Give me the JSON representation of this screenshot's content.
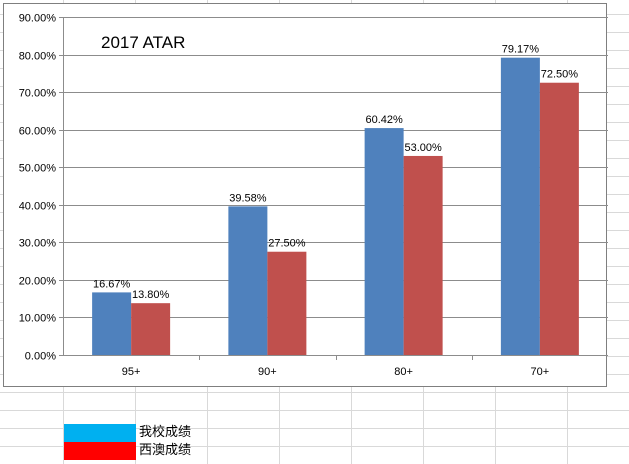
{
  "chart_data": {
    "type": "bar",
    "title": "2017 ATAR",
    "categories": [
      "95+",
      "90+",
      "80+",
      "70+"
    ],
    "series": [
      {
        "values": [
          16.67,
          39.58,
          60.42,
          79.17
        ],
        "labels": [
          "16.67%",
          "39.58%",
          "60.42%",
          "79.17%"
        ],
        "color": "#4f81bd"
      },
      {
        "values": [
          13.8,
          27.5,
          53.0,
          72.5
        ],
        "labels": [
          "13.80%",
          "27.50%",
          "53.00%",
          "72.50%"
        ],
        "color": "#c0504d"
      }
    ],
    "ylim": [
      0,
      90
    ],
    "yticks": [
      "0.00%",
      "10.00%",
      "20.00%",
      "30.00%",
      "40.00%",
      "50.00%",
      "60.00%",
      "70.00%",
      "80.00%",
      "90.00%"
    ],
    "grid": true
  },
  "legend": {
    "items": [
      {
        "label": "我校成绩",
        "color": "#00b0f0"
      },
      {
        "label": "西澳成绩",
        "color": "#ff0000"
      }
    ]
  }
}
